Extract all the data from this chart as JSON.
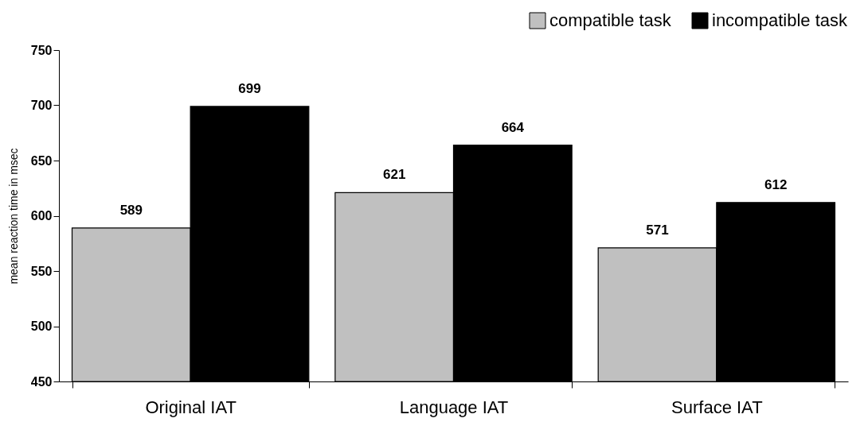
{
  "chart_data": {
    "type": "bar",
    "ylabel": "mean reaction time in msec",
    "categories": [
      "Original IAT",
      "Language IAT",
      "Surface IAT"
    ],
    "series": [
      {
        "name": "compatible task",
        "color": "#c0c0c0",
        "values": [
          589,
          621,
          571
        ]
      },
      {
        "name": "incompatible task",
        "color": "#000000",
        "values": [
          699,
          664,
          612
        ]
      }
    ],
    "ylim": [
      450,
      750
    ],
    "yticks": [
      450,
      500,
      550,
      600,
      650,
      700,
      750
    ],
    "grid": false,
    "legend": "top right",
    "data_labels": true
  }
}
